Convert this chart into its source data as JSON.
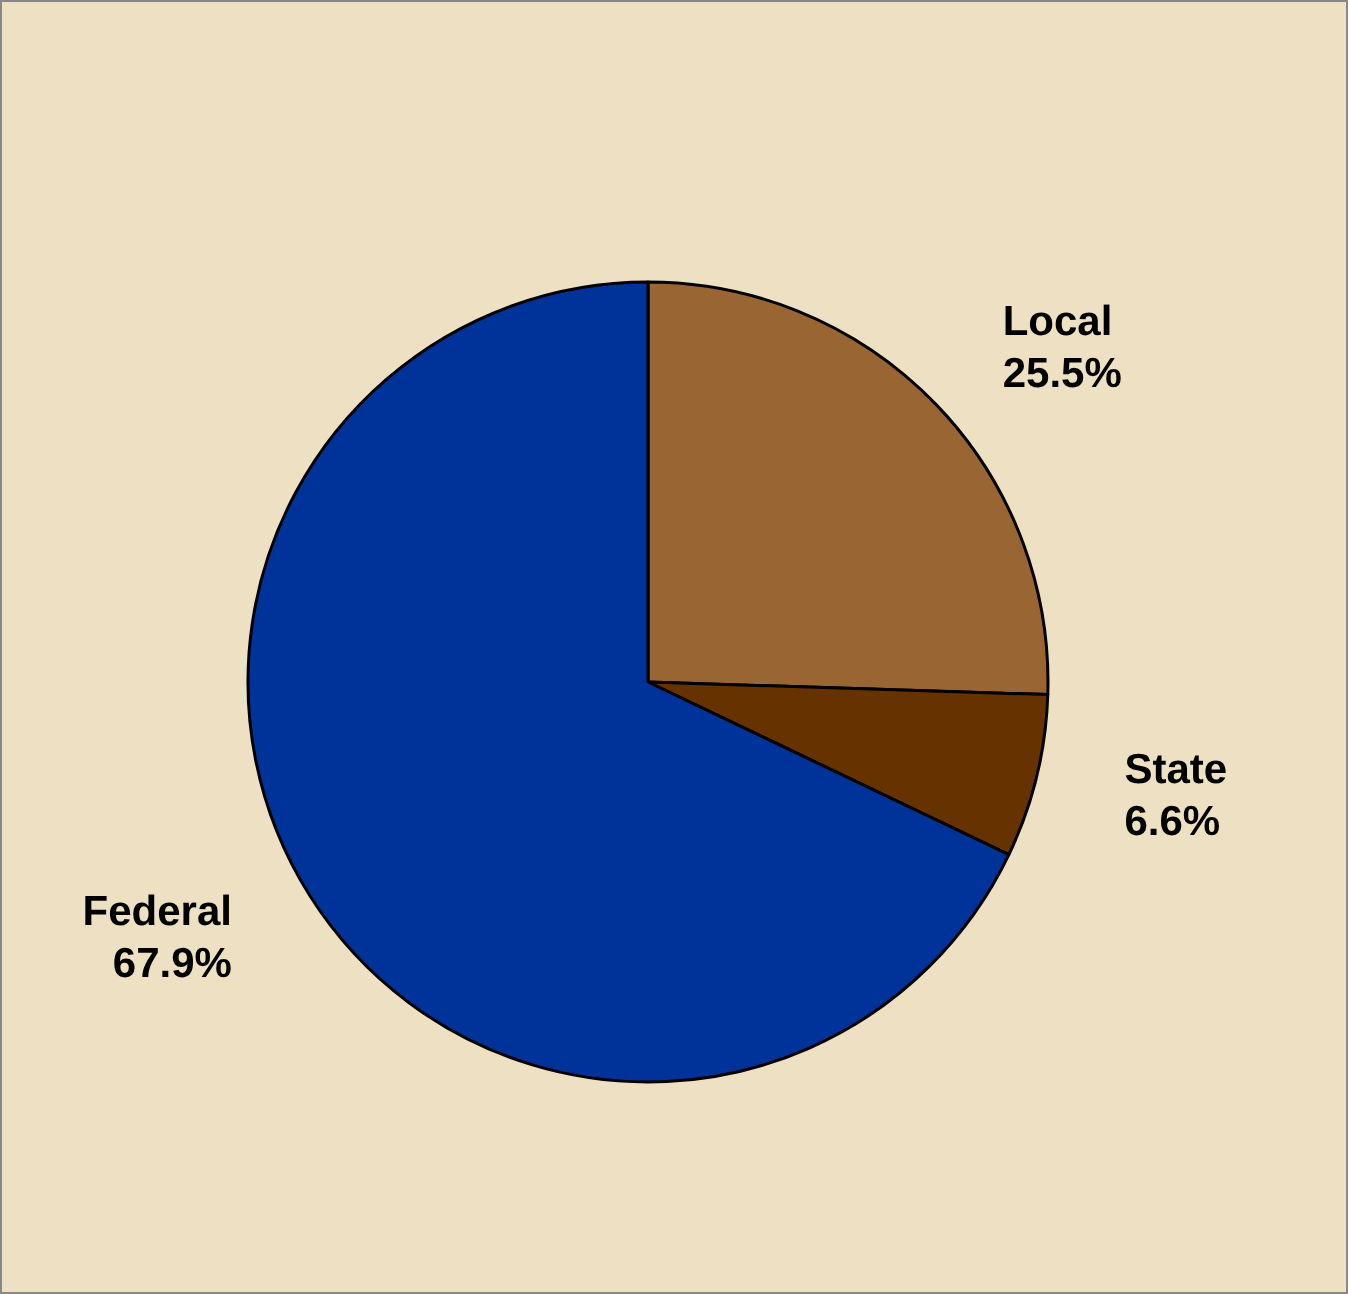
{
  "chart_data": {
    "type": "pie",
    "categories": [
      "Local",
      "State",
      "Federal"
    ],
    "values": [
      25.5,
      6.6,
      67.9
    ],
    "colors": [
      "#996633",
      "#663300",
      "#003399"
    ],
    "value_labels": [
      "25.5%",
      "6.6%",
      "67.9%"
    ],
    "legend": false
  }
}
